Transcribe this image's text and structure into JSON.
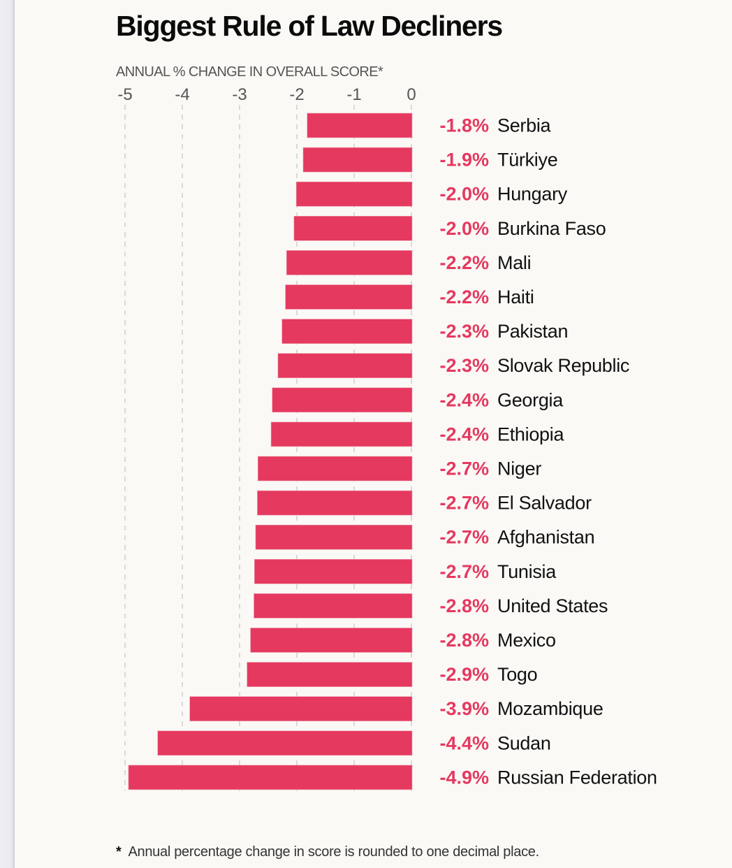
{
  "chart_data": {
    "type": "bar",
    "orientation": "horizontal",
    "title": "Biggest Rule of Law Decliners",
    "xlabel": "ANNUAL % CHANGE IN OVERALL SCORE*",
    "ylabel": "",
    "xlim": [
      -5,
      0
    ],
    "xticks": [
      -5,
      -4,
      -3,
      -2,
      -1,
      0
    ],
    "xtick_labels": [
      "-5",
      "-4",
      "-3",
      "-2",
      "-1",
      "0"
    ],
    "grid": "vertical dashed",
    "bar_color": "#e5395f",
    "label_color": "#e5395f",
    "categories": [
      "Serbia",
      "Türkiye",
      "Hungary",
      "Burkina Faso",
      "Mali",
      "Haiti",
      "Pakistan",
      "Slovak Republic",
      "Georgia",
      "Ethiopia",
      "Niger",
      "El Salvador",
      "Afghanistan",
      "Tunisia",
      "United States",
      "Mexico",
      "Togo",
      "Mozambique",
      "Sudan",
      "Russian Federation"
    ],
    "values": [
      -1.82,
      -1.89,
      -2.01,
      -2.05,
      -2.18,
      -2.2,
      -2.26,
      -2.33,
      -2.43,
      -2.45,
      -2.68,
      -2.69,
      -2.72,
      -2.74,
      -2.75,
      -2.81,
      -2.87,
      -3.87,
      -4.43,
      -4.94
    ],
    "value_labels": [
      "-1.8%",
      "-1.9%",
      "-2.0%",
      "-2.0%",
      "-2.2%",
      "-2.2%",
      "-2.3%",
      "-2.3%",
      "-2.4%",
      "-2.4%",
      "-2.7%",
      "-2.7%",
      "-2.7%",
      "-2.7%",
      "-2.8%",
      "-2.8%",
      "-2.9%",
      "-3.9%",
      "-4.4%",
      "-4.9%"
    ],
    "footnote": "Annual percentage change in score is rounded to one decimal place.",
    "footnote_marker": "*"
  }
}
